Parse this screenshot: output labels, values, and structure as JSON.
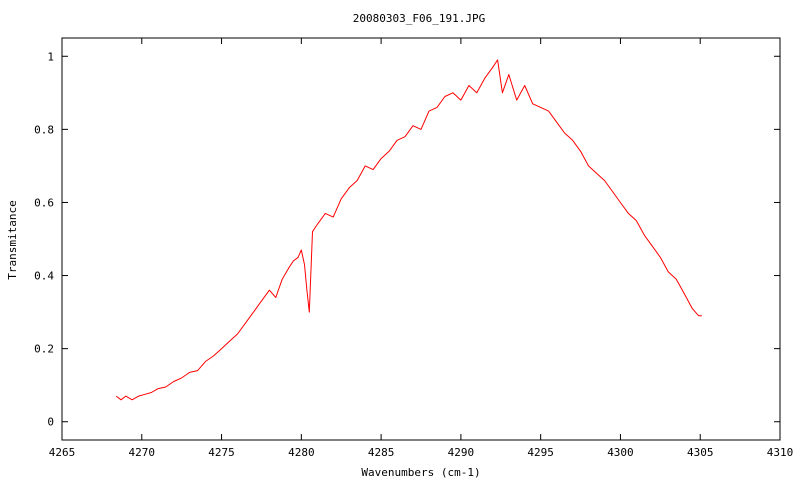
{
  "chart_data": {
    "type": "line",
    "title": "20080303_F06_191.JPG",
    "xlabel": "Wavenumbers (cm-1)",
    "ylabel": "Transmitance",
    "xlim": [
      4265,
      4310
    ],
    "ylim": [
      -0.05,
      1.05
    ],
    "xticks": [
      4265,
      4270,
      4275,
      4280,
      4285,
      4290,
      4295,
      4300,
      4305,
      4310
    ],
    "yticks": [
      0,
      0.2,
      0.4,
      0.6,
      0.8,
      1
    ],
    "ytick_labels": [
      "0",
      "0.2",
      "0.4",
      "0.6",
      "0.8",
      "1"
    ],
    "grid": false,
    "legend": "none",
    "series": [
      {
        "color": "#ff0000",
        "x": [
          4268.4,
          4268.7,
          4269.0,
          4269.4,
          4269.8,
          4270.2,
          4270.6,
          4271.0,
          4271.5,
          4272.0,
          4272.5,
          4273.0,
          4273.5,
          4274.0,
          4274.5,
          4275.0,
          4275.5,
          4276.0,
          4276.5,
          4277.0,
          4277.5,
          4278.0,
          4278.4,
          4278.8,
          4279.2,
          4279.5,
          4279.8,
          4280.0,
          4280.2,
          4280.35,
          4280.5,
          4280.7,
          4281.0,
          4281.5,
          4282.0,
          4282.5,
          4283.0,
          4283.5,
          4284.0,
          4284.5,
          4285.0,
          4285.5,
          4286.0,
          4286.5,
          4287.0,
          4287.5,
          4288.0,
          4288.5,
          4289.0,
          4289.5,
          4290.0,
          4290.5,
          4291.0,
          4291.5,
          4292.0,
          4292.3,
          4292.6,
          4293.0,
          4293.5,
          4294.0,
          4294.5,
          4295.0,
          4295.5,
          4296.0,
          4296.5,
          4297.0,
          4297.5,
          4298.0,
          4298.5,
          4299.0,
          4299.5,
          4300.0,
          4300.5,
          4301.0,
          4301.5,
          4302.0,
          4302.5,
          4303.0,
          4303.5,
          4304.0,
          4304.5,
          4304.9,
          4305.1
        ],
        "y": [
          0.07,
          0.06,
          0.07,
          0.06,
          0.07,
          0.075,
          0.08,
          0.09,
          0.095,
          0.11,
          0.12,
          0.135,
          0.14,
          0.165,
          0.18,
          0.2,
          0.22,
          0.24,
          0.27,
          0.3,
          0.33,
          0.36,
          0.34,
          0.39,
          0.42,
          0.44,
          0.45,
          0.47,
          0.43,
          0.36,
          0.3,
          0.52,
          0.54,
          0.57,
          0.56,
          0.61,
          0.64,
          0.66,
          0.7,
          0.69,
          0.72,
          0.74,
          0.77,
          0.78,
          0.81,
          0.8,
          0.85,
          0.86,
          0.89,
          0.9,
          0.88,
          0.92,
          0.9,
          0.94,
          0.97,
          0.99,
          0.9,
          0.95,
          0.88,
          0.92,
          0.87,
          0.86,
          0.85,
          0.82,
          0.79,
          0.77,
          0.74,
          0.7,
          0.68,
          0.66,
          0.63,
          0.6,
          0.57,
          0.55,
          0.51,
          0.48,
          0.45,
          0.41,
          0.39,
          0.35,
          0.31,
          0.29,
          0.29
        ]
      }
    ]
  }
}
